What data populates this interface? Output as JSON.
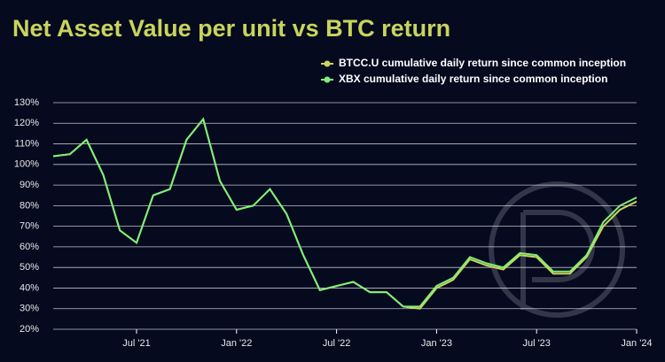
{
  "chart_data": {
    "type": "line",
    "title": "Net Asset Value per unit vs BTC return",
    "x": [
      "2021-02",
      "2021-03",
      "2021-04",
      "2021-05",
      "2021-06",
      "2021-07",
      "2021-08",
      "2021-09",
      "2021-10",
      "2021-11",
      "2021-12",
      "2022-01",
      "2022-02",
      "2022-03",
      "2022-04",
      "2022-05",
      "2022-06",
      "2022-07",
      "2022-08",
      "2022-09",
      "2022-10",
      "2022-11",
      "2022-12",
      "2023-01",
      "2023-02",
      "2023-03",
      "2023-04",
      "2023-05",
      "2023-06",
      "2023-07",
      "2023-08",
      "2023-09",
      "2023-10",
      "2023-11",
      "2023-12",
      "2024-01"
    ],
    "series": [
      {
        "name": "BTCC.U cumulative daily return since common inception",
        "color": "#c9d45c",
        "values": [
          104,
          105,
          112,
          95,
          68,
          62,
          85,
          88,
          112,
          122,
          92,
          78,
          80,
          88,
          76,
          56,
          39,
          41,
          43,
          38,
          38,
          31,
          30,
          40,
          44,
          54,
          51,
          49,
          56,
          55,
          47,
          47,
          55,
          70,
          78,
          82
        ]
      },
      {
        "name": "XBX cumulative daily return since common inception",
        "color": "#7ef07a",
        "values": [
          104,
          105,
          112,
          95,
          68,
          62,
          85,
          88,
          112,
          122,
          92,
          78,
          80,
          88,
          76,
          56,
          39,
          41,
          43,
          38,
          38,
          31,
          31,
          41,
          45,
          55,
          52,
          50,
          57,
          56,
          48,
          48,
          56,
          72,
          80,
          84
        ]
      }
    ],
    "xlim": [
      "2021-02",
      "2024-01"
    ],
    "xticks": [
      {
        "value": "2021-07",
        "label": "Jul '21"
      },
      {
        "value": "2022-01",
        "label": "Jan '22"
      },
      {
        "value": "2022-07",
        "label": "Jul '22"
      },
      {
        "value": "2023-01",
        "label": "Jan '23"
      },
      {
        "value": "2023-07",
        "label": "Jul '23"
      },
      {
        "value": "2024-01",
        "label": "Jan '24"
      }
    ],
    "ylim": [
      20,
      130
    ],
    "yticks": [
      {
        "value": 20,
        "label": "20%"
      },
      {
        "value": 30,
        "label": "30%"
      },
      {
        "value": 40,
        "label": "40%"
      },
      {
        "value": 50,
        "label": "50%"
      },
      {
        "value": 60,
        "label": "60%"
      },
      {
        "value": 70,
        "label": "70%"
      },
      {
        "value": 80,
        "label": "80%"
      },
      {
        "value": 90,
        "label": "90%"
      },
      {
        "value": 100,
        "label": "100%"
      },
      {
        "value": 110,
        "label": "110%"
      },
      {
        "value": 120,
        "label": "120%"
      },
      {
        "value": 130,
        "label": "130%"
      }
    ],
    "grid": true,
    "legend": "top-right"
  }
}
